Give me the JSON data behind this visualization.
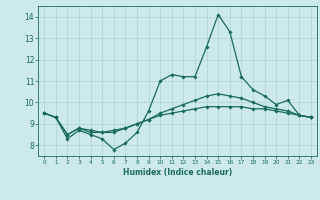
{
  "title": "",
  "xlabel": "Humidex (Indice chaleur)",
  "bg_color": "#cceae7",
  "grid_color": "#aed4d0",
  "line_color": "#1a6b5e",
  "xlim": [
    -0.5,
    23.5
  ],
  "ylim": [
    7.5,
    14.5
  ],
  "xticks": [
    0,
    1,
    2,
    3,
    4,
    5,
    6,
    7,
    8,
    9,
    10,
    11,
    12,
    13,
    14,
    15,
    16,
    17,
    18,
    19,
    20,
    21,
    22,
    23
  ],
  "yticks": [
    8,
    9,
    10,
    11,
    12,
    13,
    14
  ],
  "series1_x": [
    0,
    1,
    2,
    3,
    4,
    5,
    6,
    7,
    8,
    9,
    10,
    11,
    12,
    13,
    14,
    15,
    16,
    17,
    18,
    19,
    20,
    21,
    22,
    23
  ],
  "series1_y": [
    9.5,
    9.3,
    8.3,
    8.7,
    8.5,
    8.3,
    7.8,
    8.1,
    8.6,
    9.6,
    11.0,
    11.3,
    11.2,
    11.2,
    12.6,
    14.1,
    13.3,
    11.2,
    10.6,
    10.3,
    9.9,
    10.1,
    9.4,
    9.3
  ],
  "series2_x": [
    0,
    1,
    2,
    3,
    4,
    5,
    6,
    7,
    8,
    9,
    10,
    11,
    12,
    13,
    14,
    15,
    16,
    17,
    18,
    19,
    20,
    21,
    22,
    23
  ],
  "series2_y": [
    9.5,
    9.3,
    8.5,
    8.8,
    8.6,
    8.6,
    8.6,
    8.8,
    9.0,
    9.2,
    9.4,
    9.5,
    9.6,
    9.7,
    9.8,
    9.8,
    9.8,
    9.8,
    9.7,
    9.7,
    9.6,
    9.5,
    9.4,
    9.3
  ],
  "series3_x": [
    0,
    1,
    2,
    3,
    4,
    5,
    6,
    7,
    8,
    9,
    10,
    11,
    12,
    13,
    14,
    15,
    16,
    17,
    18,
    19,
    20,
    21,
    22,
    23
  ],
  "series3_y": [
    9.5,
    9.3,
    8.5,
    8.8,
    8.7,
    8.6,
    8.7,
    8.8,
    9.0,
    9.2,
    9.5,
    9.7,
    9.9,
    10.1,
    10.3,
    10.4,
    10.3,
    10.2,
    10.0,
    9.8,
    9.7,
    9.6,
    9.4,
    9.3
  ]
}
